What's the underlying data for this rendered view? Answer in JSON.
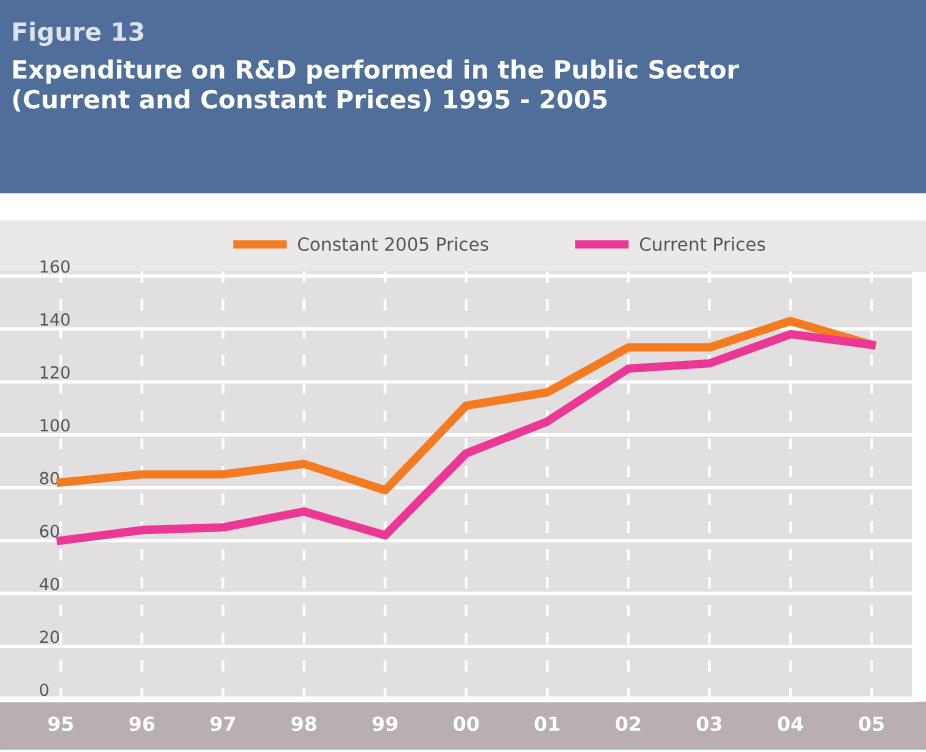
{
  "chart_data": {
    "type": "line",
    "subtitle": "Figure 13",
    "title": "Expenditure on R&D performed in the Public Sector\n(Current and Constant Prices) 1995 - 2005",
    "categories": [
      "95",
      "96",
      "97",
      "98",
      "99",
      "00",
      "01",
      "02",
      "03",
      "04",
      "05"
    ],
    "series": [
      {
        "name": "Constant 2005 Prices",
        "color": "#f47b20",
        "values": [
          82,
          85,
          85,
          89,
          79,
          111,
          116,
          133,
          133,
          143,
          134
        ]
      },
      {
        "name": "Current Prices",
        "color": "#ec3895",
        "values": [
          60,
          64,
          65,
          71,
          62,
          93,
          105,
          125,
          127,
          138,
          134
        ]
      }
    ],
    "ylim": [
      0,
      162
    ],
    "yticks": [
      0,
      20,
      40,
      60,
      80,
      100,
      120,
      140,
      160
    ],
    "grid": true,
    "legend": "top",
    "marker": "none",
    "line_style": "solid"
  }
}
